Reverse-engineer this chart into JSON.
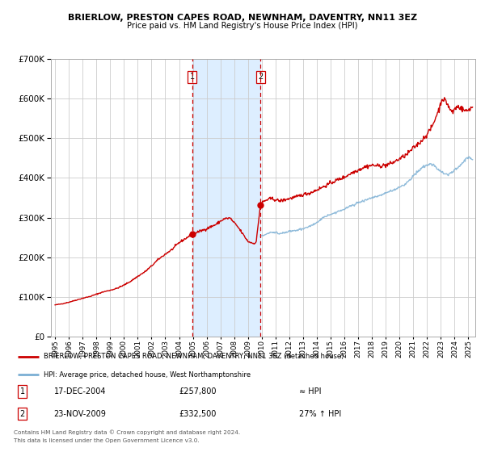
{
  "title": "BRIERLOW, PRESTON CAPES ROAD, NEWNHAM, DAVENTRY, NN11 3EZ",
  "subtitle": "Price paid vs. HM Land Registry's House Price Index (HPI)",
  "legend_line1": "BRIERLOW, PRESTON CAPES ROAD, NEWNHAM, DAVENTRY, NN11 3EZ (detached house)",
  "legend_line2": "HPI: Average price, detached house, West Northamptonshire",
  "annotation1_date": "17-DEC-2004",
  "annotation1_price": "£257,800",
  "annotation1_hpi": "≈ HPI",
  "annotation2_date": "23-NOV-2009",
  "annotation2_price": "£332,500",
  "annotation2_hpi": "27% ↑ HPI",
  "footer1": "Contains HM Land Registry data © Crown copyright and database right 2024.",
  "footer2": "This data is licensed under the Open Government Licence v3.0.",
  "sale1_year": 2004.96,
  "sale1_value": 257800,
  "sale2_year": 2009.9,
  "sale2_value": 332500,
  "hpi_color": "#7bafd4",
  "price_color": "#cc0000",
  "shade_color": "#ddeeff",
  "grid_color": "#cccccc",
  "background_color": "#ffffff",
  "ylim_max": 700000,
  "xlim_start": 1994.7,
  "xlim_end": 2025.5
}
